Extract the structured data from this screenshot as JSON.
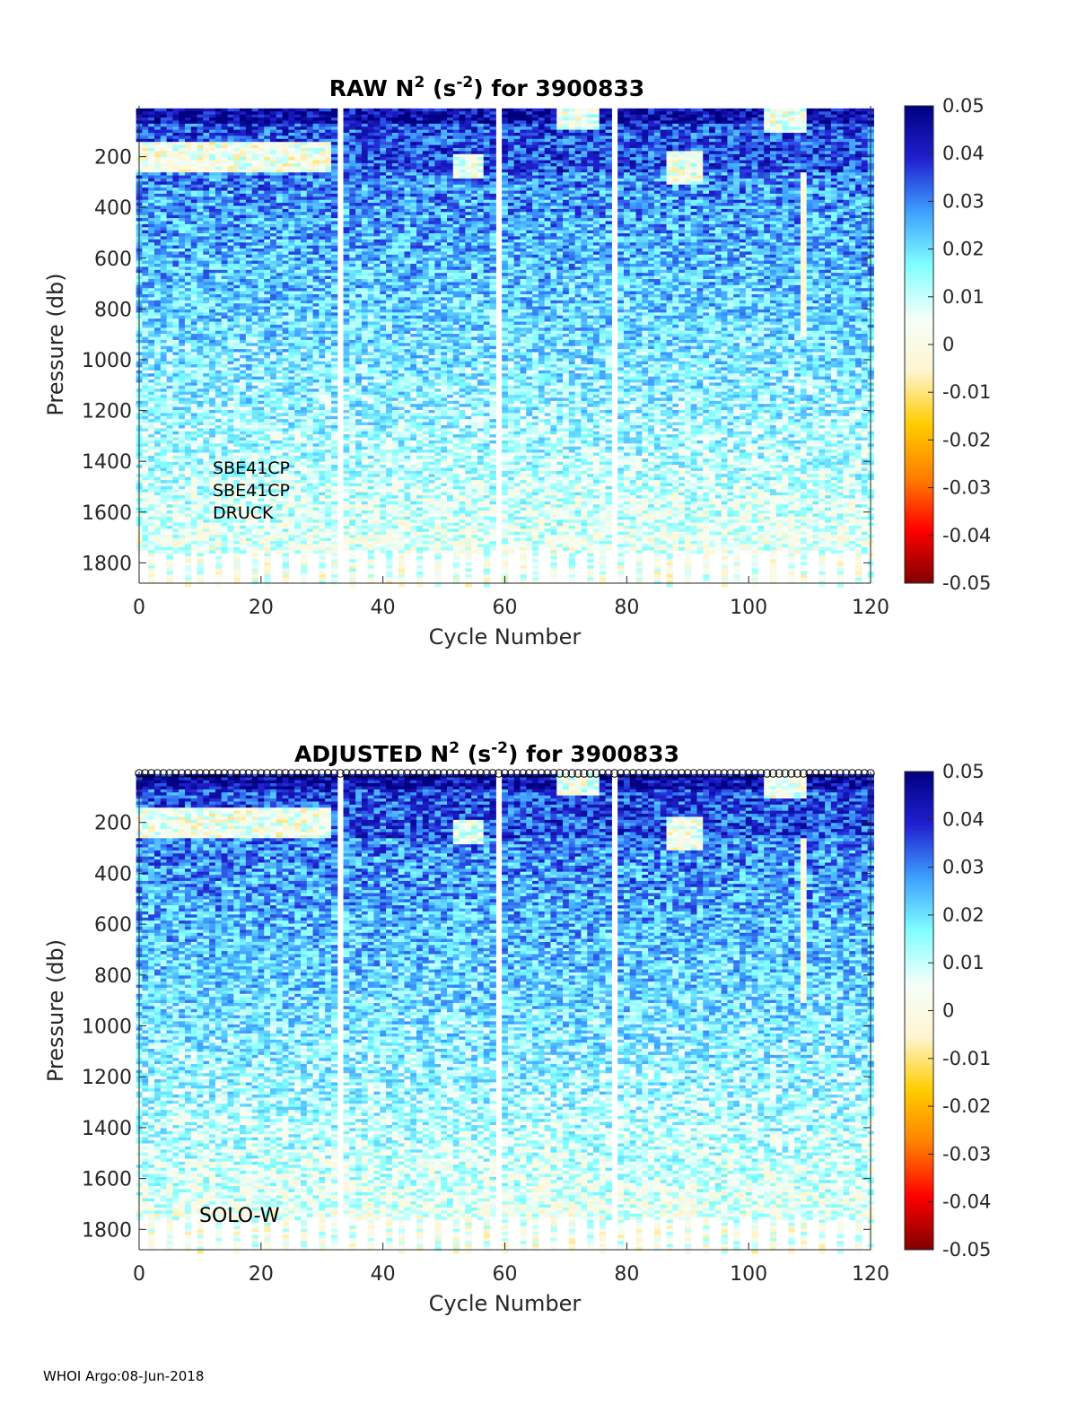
{
  "chart_data": [
    {
      "type": "heatmap",
      "title_prefix": "RAW N",
      "title_sup1": "2",
      "title_mid": " (s",
      "title_sup2": "-2",
      "title_suffix": ") for 3900833",
      "xlabel": "Cycle Number",
      "ylabel": "Pressure (db)",
      "xlim": [
        0,
        120
      ],
      "ylim": [
        1880,
        0
      ],
      "x_ticks": [
        "0",
        "20",
        "40",
        "60",
        "80",
        "100",
        "120"
      ],
      "y_ticks": [
        "200",
        "400",
        "600",
        "800",
        "1000",
        "1200",
        "1400",
        "1600",
        "1800"
      ],
      "colorbar": {
        "clim": [
          -0.05,
          0.05
        ],
        "ticks": [
          "0.05",
          "0.04",
          "0.03",
          "0.02",
          "0.01",
          "0",
          "-0.01",
          "-0.02",
          "-0.03",
          "-0.04",
          "-0.05"
        ],
        "colormap": [
          "#800000",
          "#ff0000",
          "#ff8000",
          "#ffcc00",
          "#fff5d0",
          "#f5fffa",
          "#80ffff",
          "#3ea0ff",
          "#2020d0",
          "#000080"
        ]
      },
      "missing_cycles": [
        33,
        59,
        78
      ],
      "annotations": [
        "SBE41CP",
        "SBE41CP",
        "DRUCK"
      ],
      "surface_markers": false
    },
    {
      "type": "heatmap",
      "title_prefix": "ADJUSTED N",
      "title_sup1": "2",
      "title_mid": " (s",
      "title_sup2": "-2",
      "title_suffix": ") for 3900833",
      "xlabel": "Cycle Number",
      "ylabel": "Pressure (db)",
      "xlim": [
        0,
        120
      ],
      "ylim": [
        1880,
        0
      ],
      "x_ticks": [
        "0",
        "20",
        "40",
        "60",
        "80",
        "100",
        "120"
      ],
      "y_ticks": [
        "200",
        "400",
        "600",
        "800",
        "1000",
        "1200",
        "1400",
        "1600",
        "1800"
      ],
      "colorbar": {
        "clim": [
          -0.05,
          0.05
        ],
        "ticks": [
          "0.05",
          "0.04",
          "0.03",
          "0.02",
          "0.01",
          "0",
          "-0.01",
          "-0.02",
          "-0.03",
          "-0.04",
          "-0.05"
        ],
        "colormap": [
          "#800000",
          "#ff0000",
          "#ff8000",
          "#ffcc00",
          "#fff5d0",
          "#f5fffa",
          "#80ffff",
          "#3ea0ff",
          "#2020d0",
          "#000080"
        ]
      },
      "missing_cycles": [
        33,
        59,
        78
      ],
      "annotations": [
        "SOLO-W"
      ],
      "surface_markers": true
    }
  ],
  "footer": "WHOI Argo:08-Jun-2018"
}
